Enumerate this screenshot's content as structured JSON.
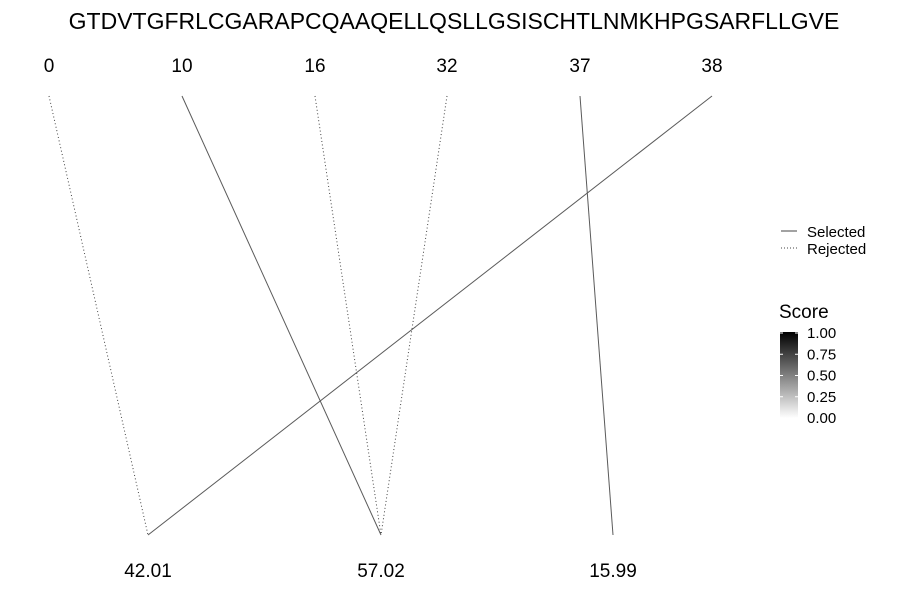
{
  "chart_data": {
    "type": "diagram",
    "sequence": "GTDVTGFRLCGARAPCQAAQELLQSLLGSISCHTLNMKHPGSARFLLGVE",
    "top_positions": [
      "0",
      "10",
      "16",
      "32",
      "37",
      "38"
    ],
    "bottom_scores": [
      "42.01",
      "57.02",
      "15.99"
    ],
    "links": [
      {
        "from": 0,
        "to": 0,
        "status": "Rejected",
        "score": 0.0
      },
      {
        "from": 1,
        "to": 1,
        "status": "Selected",
        "score": 0.5
      },
      {
        "from": 2,
        "to": 1,
        "status": "Rejected",
        "score": 0.0
      },
      {
        "from": 3,
        "to": 1,
        "status": "Rejected",
        "score": 0.0
      },
      {
        "from": 4,
        "to": 2,
        "status": "Selected",
        "score": 0.5
      },
      {
        "from": 5,
        "to": 0,
        "status": "Selected",
        "score": 0.5
      }
    ],
    "legend": {
      "linetype_entries": [
        "Selected",
        "Rejected"
      ],
      "score_title": "Score",
      "score_ticks": [
        "1.00",
        "0.75",
        "0.50",
        "0.25",
        "0.00"
      ],
      "score_range": [
        0,
        1
      ],
      "colors": {
        "high": "#000000",
        "low": "#ffffff"
      }
    }
  }
}
